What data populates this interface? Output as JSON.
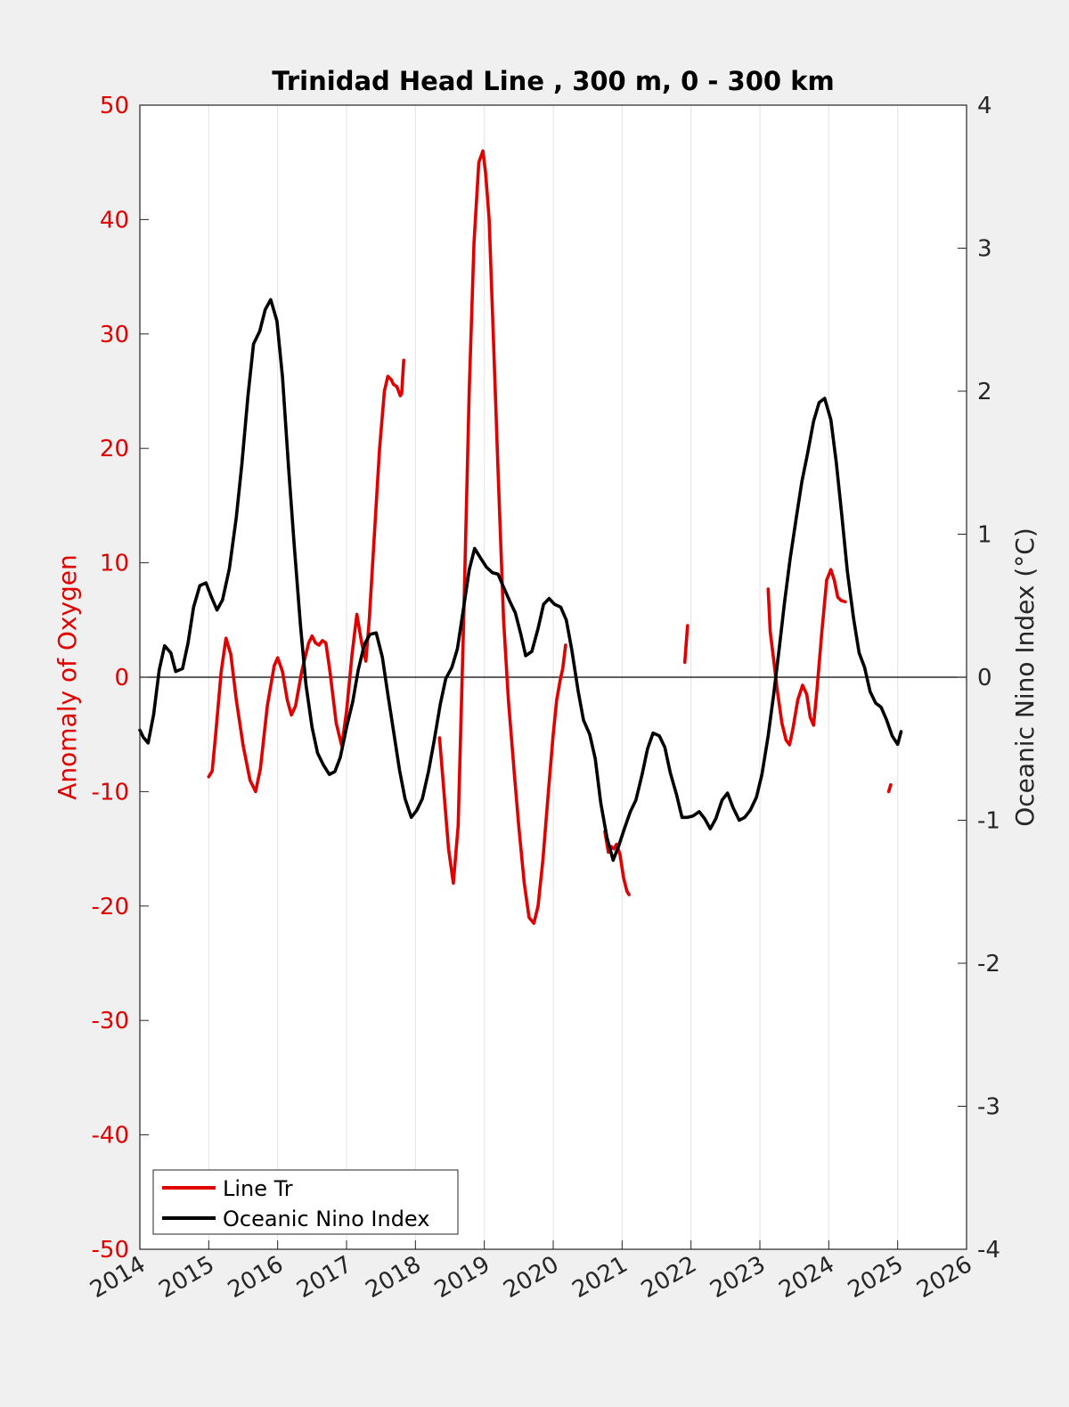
{
  "chart_data": {
    "type": "line",
    "title": "Trinidad Head Line , 300 m, 0 - 300 km",
    "ylabel_left": "Anomaly of Oxygen",
    "ylabel_right": "Oceanic Nino Index (°C)",
    "xlim": [
      2014,
      2026
    ],
    "ylim_left": [
      -50,
      50
    ],
    "ylim_right": [
      -4,
      4
    ],
    "x_ticks": [
      2014,
      2015,
      2016,
      2017,
      2018,
      2019,
      2020,
      2021,
      2022,
      2023,
      2024,
      2025,
      2026
    ],
    "y_left_ticks": [
      50,
      40,
      30,
      20,
      10,
      0,
      -10,
      -20,
      -30,
      -40,
      -50
    ],
    "y_right_ticks": [
      4,
      3,
      2,
      1,
      0,
      -1,
      -2,
      -3,
      -4
    ],
    "grid": "vertical",
    "legend_position": "bottom-left",
    "colors": {
      "line_tr": "#e00000",
      "oni": "#000000",
      "left_axis": "#e00000"
    },
    "series": [
      {
        "name": "Line Tr",
        "axis": "left",
        "segments": [
          [
            [
              2015.0,
              -8.7
            ],
            [
              2015.05,
              -8.2
            ],
            [
              2015.1,
              -5
            ],
            [
              2015.18,
              0.5
            ],
            [
              2015.25,
              3.4
            ],
            [
              2015.32,
              2
            ],
            [
              2015.4,
              -2
            ],
            [
              2015.5,
              -6
            ],
            [
              2015.6,
              -9
            ],
            [
              2015.68,
              -10
            ],
            [
              2015.75,
              -8
            ],
            [
              2015.85,
              -2.5
            ],
            [
              2015.95,
              1
            ],
            [
              2016.0,
              1.7
            ],
            [
              2016.07,
              0.5
            ],
            [
              2016.14,
              -2
            ],
            [
              2016.2,
              -3.3
            ],
            [
              2016.26,
              -2.5
            ],
            [
              2016.35,
              0.5
            ],
            [
              2016.45,
              3
            ],
            [
              2016.5,
              3.6
            ],
            [
              2016.55,
              3
            ],
            [
              2016.6,
              2.8
            ],
            [
              2016.65,
              3.2
            ],
            [
              2016.7,
              3
            ],
            [
              2016.76,
              0.5
            ],
            [
              2016.85,
              -4
            ],
            [
              2016.93,
              -6
            ],
            [
              2017.0,
              -3
            ],
            [
              2017.08,
              2
            ],
            [
              2017.15,
              5.5
            ],
            [
              2017.22,
              3
            ],
            [
              2017.28,
              1.4
            ],
            [
              2017.33,
              5
            ],
            [
              2017.4,
              12
            ],
            [
              2017.48,
              20
            ],
            [
              2017.55,
              25
            ],
            [
              2017.6,
              26.3
            ],
            [
              2017.65,
              26
            ],
            [
              2017.68,
              25.6
            ],
            [
              2017.73,
              25.4
            ],
            [
              2017.78,
              24.6
            ],
            [
              2017.8,
              24.8
            ],
            [
              2017.83,
              27.7
            ]
          ],
          [
            [
              2018.35,
              -5.3
            ],
            [
              2018.4,
              -9
            ],
            [
              2018.48,
              -15
            ],
            [
              2018.55,
              -18
            ],
            [
              2018.62,
              -13
            ],
            [
              2018.7,
              5
            ],
            [
              2018.78,
              25
            ],
            [
              2018.85,
              38
            ],
            [
              2018.92,
              45
            ],
            [
              2018.98,
              46
            ],
            [
              2019.02,
              44
            ],
            [
              2019.07,
              40
            ],
            [
              2019.13,
              30
            ],
            [
              2019.2,
              18
            ],
            [
              2019.28,
              5
            ],
            [
              2019.35,
              -2
            ],
            [
              2019.43,
              -8
            ],
            [
              2019.5,
              -13
            ],
            [
              2019.58,
              -18
            ],
            [
              2019.65,
              -21
            ],
            [
              2019.72,
              -21.5
            ],
            [
              2019.78,
              -20
            ],
            [
              2019.85,
              -16
            ],
            [
              2019.93,
              -10
            ],
            [
              2020.0,
              -5
            ],
            [
              2020.05,
              -2
            ],
            [
              2020.1,
              -0.3
            ],
            [
              2020.14,
              0.8
            ],
            [
              2020.18,
              2.8
            ]
          ],
          [
            [
              2020.75,
              -13.5
            ],
            [
              2020.8,
              -15.3
            ],
            [
              2020.84,
              -14.8
            ],
            [
              2020.88,
              -15
            ],
            [
              2020.92,
              -14.6
            ],
            [
              2020.97,
              -15.5
            ],
            [
              2021.02,
              -17.5
            ],
            [
              2021.07,
              -18.7
            ],
            [
              2021.1,
              -19
            ]
          ],
          [
            [
              2021.91,
              1.3
            ],
            [
              2021.95,
              4.5
            ]
          ],
          [
            [
              2023.12,
              7.7
            ],
            [
              2023.15,
              4
            ],
            [
              2023.2,
              1.5
            ],
            [
              2023.25,
              -1
            ],
            [
              2023.32,
              -4
            ],
            [
              2023.38,
              -5.5
            ],
            [
              2023.43,
              -5.9
            ],
            [
              2023.48,
              -4.5
            ],
            [
              2023.55,
              -2
            ],
            [
              2023.62,
              -0.7
            ],
            [
              2023.68,
              -1.5
            ],
            [
              2023.73,
              -3.5
            ],
            [
              2023.78,
              -4.2
            ],
            [
              2023.83,
              -1
            ],
            [
              2023.9,
              4
            ],
            [
              2023.97,
              8.5
            ],
            [
              2024.03,
              9.4
            ],
            [
              2024.08,
              8.5
            ],
            [
              2024.13,
              7
            ],
            [
              2024.18,
              6.7
            ],
            [
              2024.24,
              6.6
            ]
          ],
          [
            [
              2024.87,
              -10
            ],
            [
              2024.9,
              -9.4
            ]
          ]
        ]
      },
      {
        "name": "Oceanic Nino Index",
        "axis": "right",
        "segments": [
          [
            [
              2014.0,
              -0.37
            ],
            [
              2014.05,
              -0.42
            ],
            [
              2014.12,
              -0.46
            ],
            [
              2014.2,
              -0.26
            ],
            [
              2014.28,
              0.05
            ],
            [
              2014.36,
              0.22
            ],
            [
              2014.45,
              0.17
            ],
            [
              2014.52,
              0.04
            ],
            [
              2014.62,
              0.06
            ],
            [
              2014.7,
              0.24
            ],
            [
              2014.78,
              0.49
            ],
            [
              2014.87,
              0.64
            ],
            [
              2014.96,
              0.66
            ],
            [
              2015.04,
              0.56
            ],
            [
              2015.12,
              0.47
            ],
            [
              2015.2,
              0.54
            ],
            [
              2015.3,
              0.76
            ],
            [
              2015.4,
              1.12
            ],
            [
              2015.48,
              1.49
            ],
            [
              2015.57,
              1.97
            ],
            [
              2015.65,
              2.33
            ],
            [
              2015.74,
              2.42
            ],
            [
              2015.82,
              2.57
            ],
            [
              2015.9,
              2.64
            ],
            [
              2015.99,
              2.49
            ],
            [
              2016.07,
              2.1
            ],
            [
              2016.16,
              1.46
            ],
            [
              2016.24,
              0.93
            ],
            [
              2016.33,
              0.37
            ],
            [
              2016.41,
              -0.05
            ],
            [
              2016.5,
              -0.35
            ],
            [
              2016.58,
              -0.53
            ],
            [
              2016.66,
              -0.61
            ],
            [
              2016.75,
              -0.68
            ],
            [
              2016.83,
              -0.66
            ],
            [
              2016.91,
              -0.56
            ],
            [
              2017.0,
              -0.35
            ],
            [
              2017.09,
              -0.17
            ],
            [
              2017.17,
              0.05
            ],
            [
              2017.26,
              0.23
            ],
            [
              2017.34,
              0.3
            ],
            [
              2017.43,
              0.31
            ],
            [
              2017.52,
              0.14
            ],
            [
              2017.6,
              -0.12
            ],
            [
              2017.68,
              -0.37
            ],
            [
              2017.77,
              -0.65
            ],
            [
              2017.85,
              -0.85
            ],
            [
              2017.94,
              -0.98
            ],
            [
              2018.02,
              -0.93
            ],
            [
              2018.1,
              -0.85
            ],
            [
              2018.19,
              -0.66
            ],
            [
              2018.27,
              -0.45
            ],
            [
              2018.36,
              -0.19
            ],
            [
              2018.44,
              -0.01
            ],
            [
              2018.53,
              0.07
            ],
            [
              2018.61,
              0.2
            ],
            [
              2018.7,
              0.49
            ],
            [
              2018.78,
              0.75
            ],
            [
              2018.86,
              0.9
            ],
            [
              2018.95,
              0.83
            ],
            [
              2019.03,
              0.77
            ],
            [
              2019.12,
              0.73
            ],
            [
              2019.2,
              0.72
            ],
            [
              2019.28,
              0.63
            ],
            [
              2019.37,
              0.53
            ],
            [
              2019.45,
              0.45
            ],
            [
              2019.53,
              0.3
            ],
            [
              2019.6,
              0.15
            ],
            [
              2019.69,
              0.18
            ],
            [
              2019.78,
              0.34
            ],
            [
              2019.86,
              0.51
            ],
            [
              2019.94,
              0.55
            ],
            [
              2020.02,
              0.51
            ],
            [
              2020.11,
              0.49
            ],
            [
              2020.19,
              0.4
            ],
            [
              2020.27,
              0.19
            ],
            [
              2020.36,
              -0.09
            ],
            [
              2020.44,
              -0.3
            ],
            [
              2020.53,
              -0.4
            ],
            [
              2020.61,
              -0.57
            ],
            [
              2020.69,
              -0.88
            ],
            [
              2020.78,
              -1.12
            ],
            [
              2020.87,
              -1.28
            ],
            [
              2020.95,
              -1.18
            ],
            [
              2021.04,
              -1.05
            ],
            [
              2021.12,
              -0.94
            ],
            [
              2021.2,
              -0.86
            ],
            [
              2021.29,
              -0.68
            ],
            [
              2021.37,
              -0.5
            ],
            [
              2021.45,
              -0.39
            ],
            [
              2021.54,
              -0.41
            ],
            [
              2021.62,
              -0.49
            ],
            [
              2021.7,
              -0.67
            ],
            [
              2021.79,
              -0.82
            ],
            [
              2021.87,
              -0.98
            ],
            [
              2021.95,
              -0.98
            ],
            [
              2022.03,
              -0.97
            ],
            [
              2022.12,
              -0.94
            ],
            [
              2022.2,
              -0.99
            ],
            [
              2022.28,
              -1.06
            ],
            [
              2022.36,
              -0.99
            ],
            [
              2022.45,
              -0.86
            ],
            [
              2022.53,
              -0.81
            ],
            [
              2022.61,
              -0.91
            ],
            [
              2022.7,
              -1.0
            ],
            [
              2022.78,
              -0.98
            ],
            [
              2022.86,
              -0.93
            ],
            [
              2022.95,
              -0.84
            ],
            [
              2023.03,
              -0.68
            ],
            [
              2023.12,
              -0.41
            ],
            [
              2023.2,
              -0.12
            ],
            [
              2023.28,
              0.2
            ],
            [
              2023.36,
              0.53
            ],
            [
              2023.44,
              0.83
            ],
            [
              2023.53,
              1.12
            ],
            [
              2023.61,
              1.37
            ],
            [
              2023.69,
              1.56
            ],
            [
              2023.78,
              1.79
            ],
            [
              2023.86,
              1.92
            ],
            [
              2023.94,
              1.95
            ],
            [
              2024.03,
              1.8
            ],
            [
              2024.11,
              1.5
            ],
            [
              2024.19,
              1.13
            ],
            [
              2024.27,
              0.74
            ],
            [
              2024.36,
              0.41
            ],
            [
              2024.44,
              0.17
            ],
            [
              2024.52,
              0.07
            ],
            [
              2024.6,
              -0.1
            ],
            [
              2024.68,
              -0.18
            ],
            [
              2024.76,
              -0.21
            ],
            [
              2024.84,
              -0.3
            ],
            [
              2024.92,
              -0.41
            ],
            [
              2025.0,
              -0.47
            ],
            [
              2025.05,
              -0.38
            ]
          ]
        ]
      }
    ]
  }
}
